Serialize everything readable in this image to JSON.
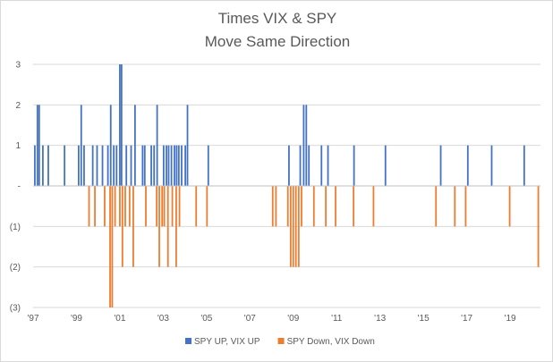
{
  "chart_data": {
    "type": "bar",
    "title": [
      "Times  VIX & SPY",
      "Move Same Direction"
    ],
    "xlabel": "",
    "ylabel": "",
    "ylim": [
      -3,
      3
    ],
    "xlim": [
      1997.0,
      2020.4
    ],
    "y_ticks": [
      {
        "value": 3,
        "label": "3"
      },
      {
        "value": 2,
        "label": "2"
      },
      {
        "value": 1,
        "label": "1"
      },
      {
        "value": 0,
        "label": "-"
      },
      {
        "value": -1,
        "label": "(1)"
      },
      {
        "value": -2,
        "label": "(2)"
      },
      {
        "value": -3,
        "label": "(3)"
      }
    ],
    "x_ticks": [
      {
        "value": 1997,
        "label": "'97"
      },
      {
        "value": 1999,
        "label": "'99"
      },
      {
        "value": 2001,
        "label": "'01"
      },
      {
        "value": 2003,
        "label": "'03"
      },
      {
        "value": 2005,
        "label": "'05"
      },
      {
        "value": 2007,
        "label": "'07"
      },
      {
        "value": 2009,
        "label": "'09"
      },
      {
        "value": 2011,
        "label": "'11"
      },
      {
        "value": 2013,
        "label": "'13"
      },
      {
        "value": 2015,
        "label": "'15"
      },
      {
        "value": 2017,
        "label": "'17"
      },
      {
        "value": 2019,
        "label": "'19"
      }
    ],
    "grid": true,
    "legend_position": "bottom",
    "series": [
      {
        "name": "SPY UP, VIX UP",
        "color": "#4472c4",
        "points": [
          {
            "x": 1997.08,
            "y": 1
          },
          {
            "x": 1997.2,
            "y": 2
          },
          {
            "x": 1997.28,
            "y": 2
          },
          {
            "x": 1997.45,
            "y": 1
          },
          {
            "x": 1997.7,
            "y": 1
          },
          {
            "x": 1998.45,
            "y": 1
          },
          {
            "x": 1999.1,
            "y": 1
          },
          {
            "x": 1999.22,
            "y": 2
          },
          {
            "x": 1999.35,
            "y": 1
          },
          {
            "x": 1999.75,
            "y": 1
          },
          {
            "x": 1999.95,
            "y": 1
          },
          {
            "x": 2000.2,
            "y": 1
          },
          {
            "x": 2000.45,
            "y": 1
          },
          {
            "x": 2000.58,
            "y": 2
          },
          {
            "x": 2000.72,
            "y": 1
          },
          {
            "x": 2000.85,
            "y": 1
          },
          {
            "x": 2001.0,
            "y": 3
          },
          {
            "x": 2001.08,
            "y": 3
          },
          {
            "x": 2001.3,
            "y": 1
          },
          {
            "x": 2001.52,
            "y": 1
          },
          {
            "x": 2001.7,
            "y": 2
          },
          {
            "x": 2002.05,
            "y": 1
          },
          {
            "x": 2002.15,
            "y": 1
          },
          {
            "x": 2002.45,
            "y": 1
          },
          {
            "x": 2002.58,
            "y": 1
          },
          {
            "x": 2002.72,
            "y": 2
          },
          {
            "x": 2003.02,
            "y": 1
          },
          {
            "x": 2003.15,
            "y": 1
          },
          {
            "x": 2003.25,
            "y": 1
          },
          {
            "x": 2003.38,
            "y": 1
          },
          {
            "x": 2003.52,
            "y": 1
          },
          {
            "x": 2003.62,
            "y": 1
          },
          {
            "x": 2003.72,
            "y": 1
          },
          {
            "x": 2003.85,
            "y": 1
          },
          {
            "x": 2004.02,
            "y": 1
          },
          {
            "x": 2004.12,
            "y": 2
          },
          {
            "x": 2005.08,
            "y": 1
          },
          {
            "x": 2008.8,
            "y": 1
          },
          {
            "x": 2009.32,
            "y": 1
          },
          {
            "x": 2009.48,
            "y": 2
          },
          {
            "x": 2009.6,
            "y": 2
          },
          {
            "x": 2009.72,
            "y": 1
          },
          {
            "x": 2010.3,
            "y": 1
          },
          {
            "x": 2010.6,
            "y": 1
          },
          {
            "x": 2011.8,
            "y": 1
          },
          {
            "x": 2013.25,
            "y": 1
          },
          {
            "x": 2015.8,
            "y": 1
          },
          {
            "x": 2017.05,
            "y": 1
          },
          {
            "x": 2018.15,
            "y": 1
          },
          {
            "x": 2019.65,
            "y": 1
          }
        ]
      },
      {
        "name": "SPY Down, VIX Down",
        "color": "#ed7d31",
        "points": [
          {
            "x": 1999.58,
            "y": -1
          },
          {
            "x": 1999.85,
            "y": -1
          },
          {
            "x": 2000.3,
            "y": -1
          },
          {
            "x": 2000.55,
            "y": -3
          },
          {
            "x": 2000.65,
            "y": -3
          },
          {
            "x": 2000.78,
            "y": -1
          },
          {
            "x": 2001.0,
            "y": -1
          },
          {
            "x": 2001.12,
            "y": -2
          },
          {
            "x": 2001.25,
            "y": -1
          },
          {
            "x": 2001.45,
            "y": -1
          },
          {
            "x": 2001.62,
            "y": -2
          },
          {
            "x": 2002.2,
            "y": -1
          },
          {
            "x": 2002.7,
            "y": -1
          },
          {
            "x": 2002.82,
            "y": -2
          },
          {
            "x": 2002.95,
            "y": -1
          },
          {
            "x": 2003.05,
            "y": -1
          },
          {
            "x": 2003.22,
            "y": -2
          },
          {
            "x": 2003.42,
            "y": -1
          },
          {
            "x": 2003.6,
            "y": -2
          },
          {
            "x": 2003.75,
            "y": -1
          },
          {
            "x": 2004.52,
            "y": -1
          },
          {
            "x": 2005.02,
            "y": -1
          },
          {
            "x": 2008.05,
            "y": -1
          },
          {
            "x": 2008.2,
            "y": -1
          },
          {
            "x": 2008.75,
            "y": -1
          },
          {
            "x": 2008.88,
            "y": -2
          },
          {
            "x": 2009.0,
            "y": -2
          },
          {
            "x": 2009.12,
            "y": -2
          },
          {
            "x": 2009.25,
            "y": -2
          },
          {
            "x": 2009.38,
            "y": -1
          },
          {
            "x": 2009.95,
            "y": -1
          },
          {
            "x": 2010.5,
            "y": -1
          },
          {
            "x": 2010.95,
            "y": -1
          },
          {
            "x": 2011.78,
            "y": -1
          },
          {
            "x": 2012.7,
            "y": -1
          },
          {
            "x": 2015.58,
            "y": -1
          },
          {
            "x": 2016.45,
            "y": -1
          },
          {
            "x": 2016.95,
            "y": -1
          },
          {
            "x": 2018.98,
            "y": -1
          },
          {
            "x": 2020.3,
            "y": -2
          }
        ]
      }
    ]
  }
}
